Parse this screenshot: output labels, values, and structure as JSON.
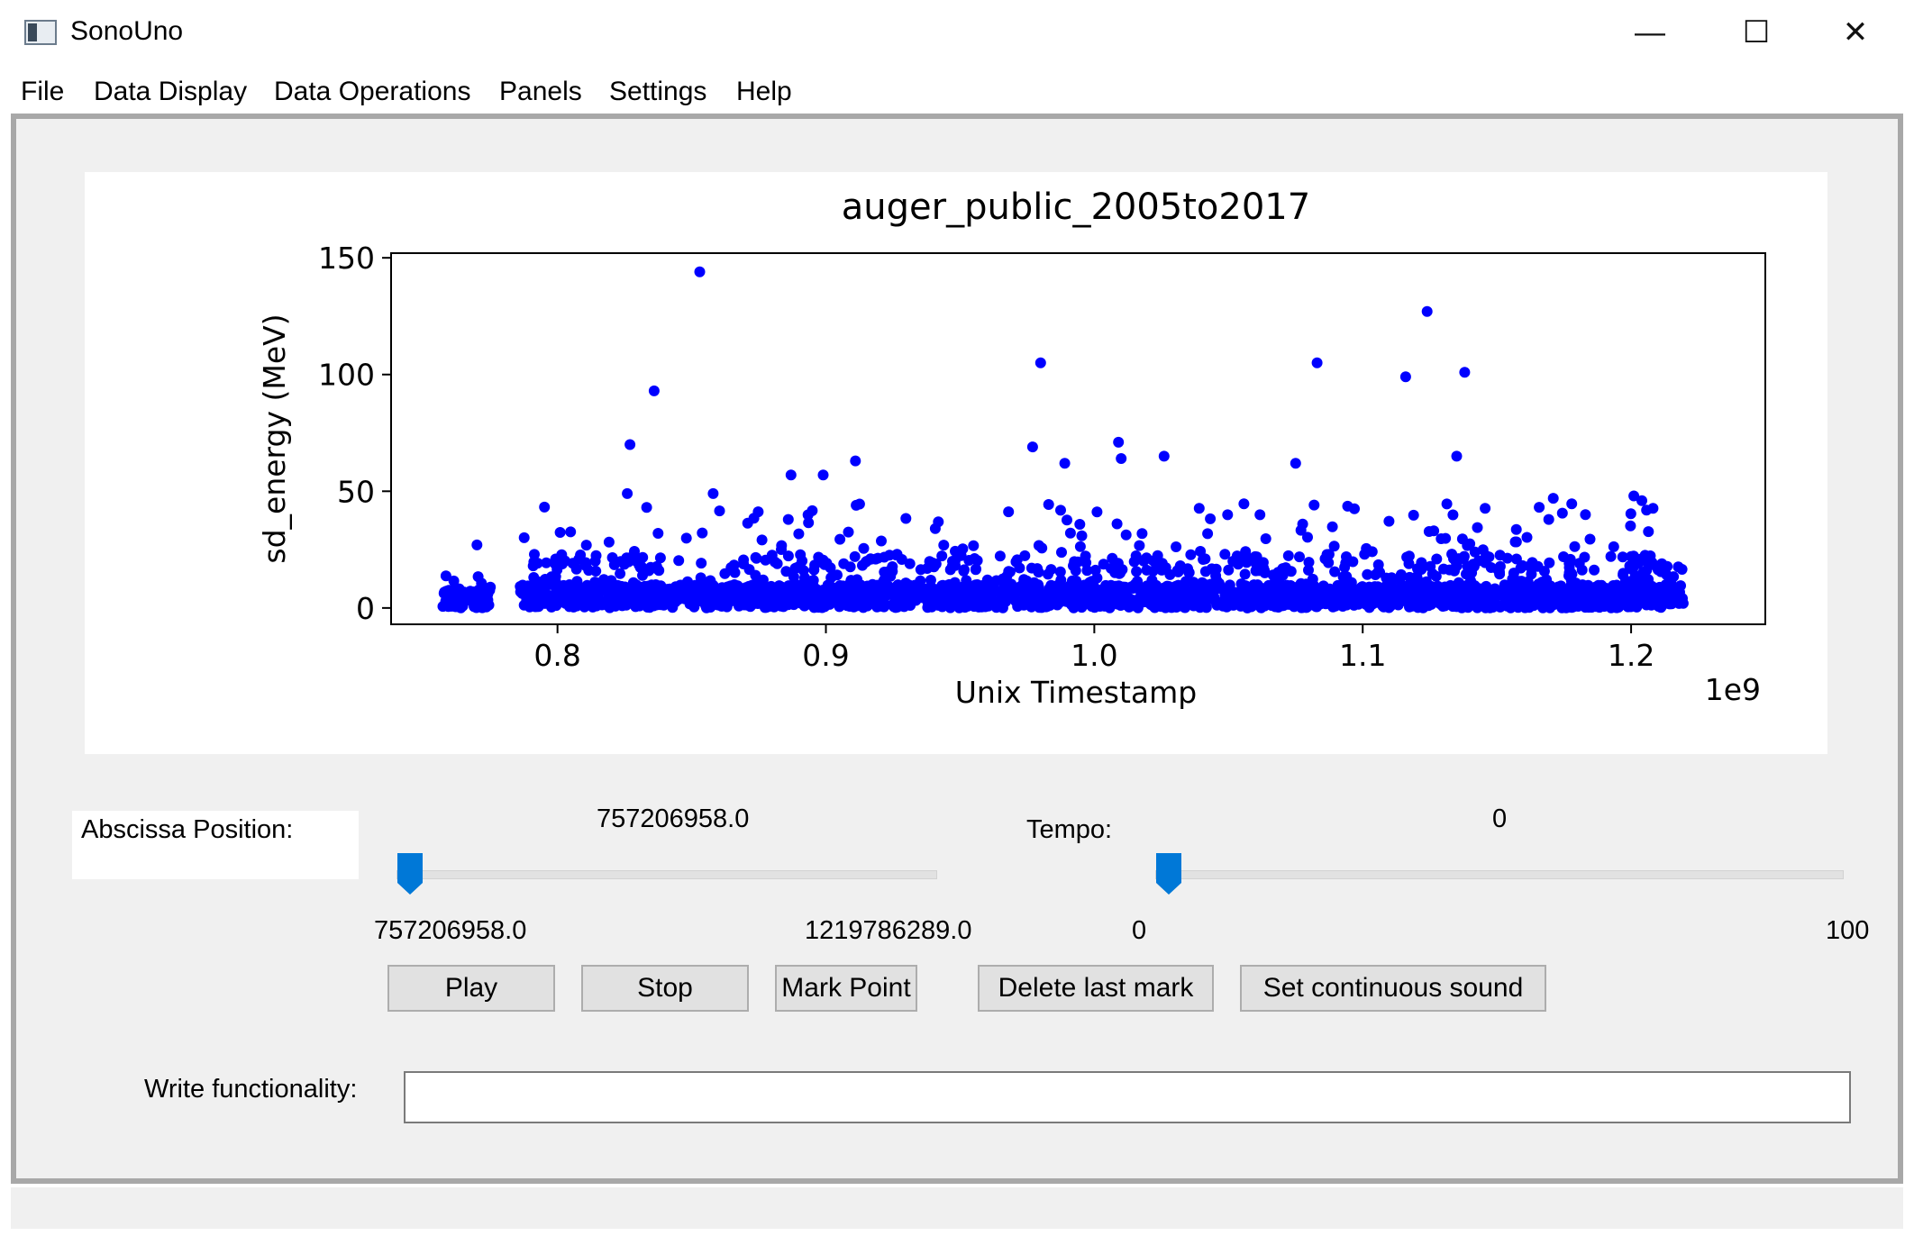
{
  "window": {
    "title": "SonoUno",
    "minimize_glyph": "—",
    "maximize_glyph": "☐",
    "close_glyph": "✕"
  },
  "menu": [
    "File",
    "Data Display",
    "Data Operations",
    "Panels",
    "Settings",
    "Help"
  ],
  "chart_data": {
    "type": "scatter",
    "title": "auger_public_2005to2017",
    "xlabel": "Unix Timestamp",
    "ylabel": "sd_energy (MeV)",
    "x_multiplier_label": "1e9",
    "xlim": [
      0.738,
      1.25
    ],
    "ylim": [
      -7,
      152
    ],
    "xticks": [
      0.8,
      0.9,
      1.0,
      1.1,
      1.2
    ],
    "xtick_labels": [
      "0.8",
      "0.9",
      "1.0",
      "1.1",
      "1.2"
    ],
    "yticks": [
      0,
      50,
      100,
      150
    ],
    "ytick_labels": [
      "0",
      "50",
      "100",
      "150"
    ],
    "point_color": "#0000ff",
    "data_x_range": [
      0.757,
      1.22
    ],
    "notable_points": [
      {
        "x": 0.853,
        "y": 144
      },
      {
        "x": 0.836,
        "y": 93
      },
      {
        "x": 0.827,
        "y": 70
      },
      {
        "x": 0.826,
        "y": 49
      },
      {
        "x": 0.858,
        "y": 49
      },
      {
        "x": 0.98,
        "y": 105
      },
      {
        "x": 0.977,
        "y": 69
      },
      {
        "x": 0.989,
        "y": 62
      },
      {
        "x": 1.009,
        "y": 71
      },
      {
        "x": 1.01,
        "y": 64
      },
      {
        "x": 1.026,
        "y": 65
      },
      {
        "x": 1.083,
        "y": 105
      },
      {
        "x": 1.075,
        "y": 62
      },
      {
        "x": 1.124,
        "y": 127
      },
      {
        "x": 1.116,
        "y": 99
      },
      {
        "x": 1.138,
        "y": 101
      },
      {
        "x": 1.135,
        "y": 65
      },
      {
        "x": 0.887,
        "y": 57
      },
      {
        "x": 0.899,
        "y": 57
      },
      {
        "x": 0.911,
        "y": 63
      },
      {
        "x": 0.77,
        "y": 27
      },
      {
        "x": 1.201,
        "y": 48
      },
      {
        "x": 1.204,
        "y": 46
      },
      {
        "x": 1.171,
        "y": 47
      },
      {
        "x": 1.183,
        "y": 40
      }
    ]
  },
  "controls": {
    "abscissa_label": "Abscissa Position:",
    "abscissa_value": "757206958.0",
    "abscissa_min": "757206958.0",
    "abscissa_max": "1219786289.0",
    "abscissa_fraction": 0,
    "tempo_label": "Tempo:",
    "tempo_value": "0",
    "tempo_min": "0",
    "tempo_max": "100",
    "tempo_fraction": 0,
    "slider_color": "#0078d7"
  },
  "buttons": {
    "play": "Play",
    "stop": "Stop",
    "mark": "Mark Point",
    "delete": "Delete last mark",
    "continuous": "Set continuous sound"
  },
  "write": {
    "label": "Write functionality:",
    "value": ""
  }
}
